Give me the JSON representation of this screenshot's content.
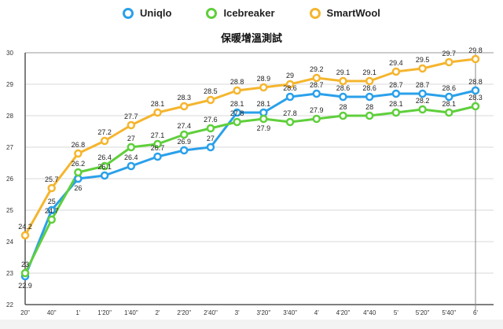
{
  "chart_data": {
    "type": "line",
    "title": "保暖增溫測試",
    "xlabel": "",
    "ylabel": "",
    "ylim": [
      22,
      30
    ],
    "yticks": [
      22,
      23,
      24,
      25,
      26,
      27,
      28,
      29,
      30
    ],
    "categories": [
      "20\"",
      "40\"",
      "1'",
      "1'20\"",
      "1'40\"",
      "2'",
      "2'20\"",
      "2'40\"",
      "3'",
      "3'20\"",
      "3'40\"",
      "4'",
      "4'20\"",
      "4\"40",
      "5'",
      "5'20\"",
      "5'40\"",
      "6'"
    ],
    "legend_position": "top",
    "grid": true,
    "series": [
      {
        "name": "Uniqlo",
        "color": "#2aa0ea",
        "values": [
          22.9,
          25,
          26,
          26.1,
          26.4,
          26.7,
          26.9,
          27,
          28.1,
          28.1,
          28.6,
          28.7,
          28.6,
          28.6,
          28.7,
          28.7,
          28.6,
          28.8
        ]
      },
      {
        "name": "Icebreaker",
        "color": "#5fcf3c",
        "values": [
          23,
          24.7,
          26.2,
          26.4,
          27,
          27.1,
          27.4,
          27.6,
          27.8,
          27.9,
          27.8,
          27.9,
          28,
          28,
          28.1,
          28.2,
          28.1,
          28.3
        ]
      },
      {
        "name": "SmartWool",
        "color": "#f5b52e",
        "values": [
          24.2,
          25.7,
          26.8,
          27.2,
          27.7,
          28.1,
          28.3,
          28.5,
          28.8,
          28.9,
          29,
          29.2,
          29.1,
          29.1,
          29.4,
          29.5,
          29.7,
          29.8
        ]
      }
    ]
  }
}
